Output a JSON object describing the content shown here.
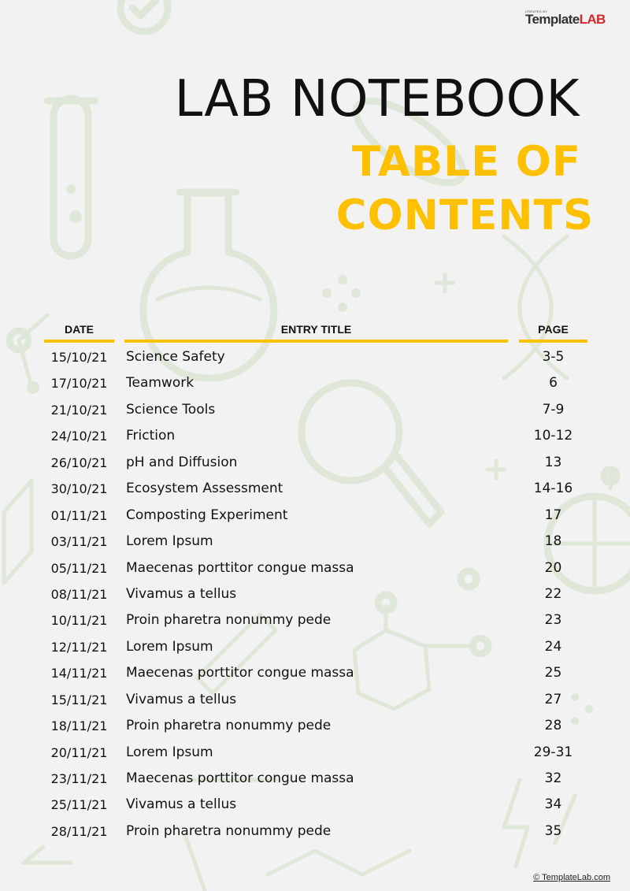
{
  "brand": {
    "small": "CREATED BY",
    "part1": "Template",
    "part2": "LAB"
  },
  "title": "LAB NOTEBOOK",
  "subtitle": {
    "line1": "TABLE OF",
    "line2": "CONTENTS"
  },
  "accent_color": "#ffc000",
  "table": {
    "headers": {
      "date": "DATE",
      "entry": "ENTRY TITLE",
      "page": "PAGE"
    },
    "rows": [
      {
        "date": "15/10/21",
        "entry": "Science Safety",
        "page": "3-5"
      },
      {
        "date": "17/10/21",
        "entry": "Teamwork",
        "page": "6"
      },
      {
        "date": "21/10/21",
        "entry": "Science Tools",
        "page": "7-9"
      },
      {
        "date": "24/10/21",
        "entry": "Friction",
        "page": "10-12"
      },
      {
        "date": "26/10/21",
        "entry": "pH and Diffusion",
        "page": "13"
      },
      {
        "date": "30/10/21",
        "entry": "Ecosystem Assessment",
        "page": "14-16"
      },
      {
        "date": "01/11/21",
        "entry": "Composting Experiment",
        "page": "17"
      },
      {
        "date": "03/11/21",
        "entry": "Lorem Ipsum",
        "page": "18"
      },
      {
        "date": "05/11/21",
        "entry": "Maecenas porttitor congue massa",
        "page": "20"
      },
      {
        "date": "08/11/21",
        "entry": "Vivamus a tellus",
        "page": "22"
      },
      {
        "date": "10/11/21",
        "entry": "Proin pharetra nonummy pede",
        "page": "23"
      },
      {
        "date": "12/11/21",
        "entry": "Lorem Ipsum",
        "page": "24"
      },
      {
        "date": "14/11/21",
        "entry": "Maecenas porttitor congue massa",
        "page": "25"
      },
      {
        "date": "15/11/21",
        "entry": "Vivamus a tellus",
        "page": "27"
      },
      {
        "date": "18/11/21",
        "entry": "Proin pharetra nonummy pede",
        "page": "28"
      },
      {
        "date": "20/11/21",
        "entry": "Lorem Ipsum",
        "page": "29-31"
      },
      {
        "date": "23/11/21",
        "entry": "Maecenas porttitor congue massa",
        "page": "32"
      },
      {
        "date": "25/11/21",
        "entry": "Vivamus a tellus",
        "page": "34"
      },
      {
        "date": "28/11/21",
        "entry": "Proin pharetra nonummy pede",
        "page": "35"
      }
    ]
  },
  "footer": {
    "copyright": "© TemplateLab.com"
  }
}
